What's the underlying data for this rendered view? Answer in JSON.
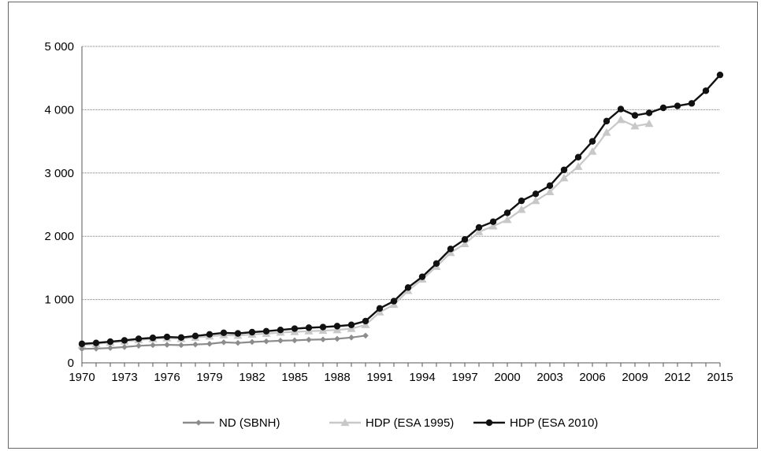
{
  "chart_data": {
    "type": "line",
    "title": "",
    "xlabel": "",
    "ylabel": "",
    "ylim": [
      0,
      5000
    ],
    "y_ticks": [
      0,
      1000,
      2000,
      3000,
      4000,
      5000
    ],
    "y_tick_labels": [
      "0",
      "1 000",
      "2 000",
      "3 000",
      "4 000",
      "5 000"
    ],
    "x_ticks": [
      1970,
      1973,
      1976,
      1979,
      1982,
      1985,
      1988,
      1991,
      1994,
      1997,
      2000,
      2003,
      2006,
      2009,
      2012,
      2015
    ],
    "x_tick_labels": [
      "1970",
      "1973",
      "1976",
      "1979",
      "1982",
      "1985",
      "1988",
      "1991",
      "1994",
      "1997",
      "2000",
      "2003",
      "2006",
      "2009",
      "2012",
      "2015"
    ],
    "grid": "horizontal",
    "legend_position": "bottom",
    "series": [
      {
        "name": "ND (SBNH)",
        "color": "#8c8c8c",
        "marker": "diamond",
        "x": [
          1970,
          1971,
          1972,
          1973,
          1974,
          1975,
          1976,
          1977,
          1978,
          1979,
          1980,
          1981,
          1982,
          1983,
          1984,
          1985,
          1986,
          1987,
          1988,
          1989,
          1990
        ],
        "values": [
          220,
          225,
          235,
          250,
          270,
          280,
          285,
          280,
          290,
          300,
          325,
          315,
          330,
          340,
          350,
          355,
          365,
          370,
          380,
          400,
          430
        ]
      },
      {
        "name": "HDP (ESA 1995)",
        "color": "#c8c8c8",
        "marker": "triangle",
        "x": [
          1970,
          1971,
          1972,
          1973,
          1974,
          1975,
          1976,
          1977,
          1978,
          1979,
          1980,
          1981,
          1982,
          1983,
          1984,
          1985,
          1986,
          1987,
          1988,
          1989,
          1990,
          1991,
          1992,
          1993,
          1994,
          1995,
          1996,
          1997,
          1998,
          1999,
          2000,
          2001,
          2002,
          2003,
          2004,
          2005,
          2006,
          2007,
          2008,
          2009,
          2010
        ],
        "values": [
          280,
          300,
          320,
          340,
          360,
          380,
          390,
          380,
          400,
          420,
          440,
          430,
          450,
          460,
          480,
          490,
          500,
          510,
          520,
          540,
          600,
          800,
          920,
          1140,
          1320,
          1520,
          1740,
          1880,
          2070,
          2160,
          2260,
          2420,
          2560,
          2700,
          2920,
          3100,
          3340,
          3640,
          3840,
          3740,
          3780
        ]
      },
      {
        "name": "HDP (ESA 2010)",
        "color": "#111111",
        "marker": "circle",
        "x": [
          1970,
          1971,
          1972,
          1973,
          1974,
          1975,
          1976,
          1977,
          1978,
          1979,
          1980,
          1981,
          1982,
          1983,
          1984,
          1985,
          1986,
          1987,
          1988,
          1989,
          1990,
          1991,
          1992,
          1993,
          1994,
          1995,
          1996,
          1997,
          1998,
          1999,
          2000,
          2001,
          2002,
          2003,
          2004,
          2005,
          2006,
          2007,
          2008,
          2009,
          2010,
          2011,
          2012,
          2013,
          2014,
          2015
        ],
        "values": [
          300,
          315,
          335,
          355,
          380,
          395,
          410,
          400,
          425,
          450,
          475,
          465,
          485,
          500,
          520,
          540,
          555,
          565,
          580,
          600,
          660,
          860,
          975,
          1190,
          1360,
          1570,
          1800,
          1950,
          2140,
          2230,
          2370,
          2560,
          2670,
          2800,
          3050,
          3250,
          3500,
          3820,
          4010,
          3910,
          3950,
          4030,
          4060,
          4100,
          4300,
          4550
        ]
      }
    ]
  }
}
